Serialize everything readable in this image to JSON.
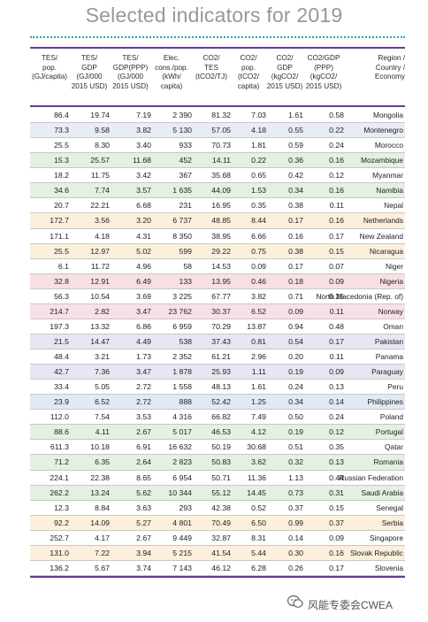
{
  "title": "Selected indicators for 2019",
  "headers": [
    {
      "lines": [
        "TES/",
        "pop.",
        "(GJ/capita)"
      ]
    },
    {
      "lines": [
        "TES/",
        "GDP",
        "(GJ/000",
        "2015 USD)"
      ]
    },
    {
      "lines": [
        "TES/",
        "GDP(PPP)",
        "(GJ/000",
        "2015 USD)"
      ]
    },
    {
      "lines": [
        "Elec.",
        "cons./pop.",
        "(kWh/",
        "capita)"
      ]
    },
    {
      "lines": [
        "CO2/",
        "TES",
        "(tCO2/TJ)"
      ]
    },
    {
      "lines": [
        "CO2/",
        "pop.",
        "(tCO2/",
        "capita)"
      ]
    },
    {
      "lines": [
        "CO2/",
        "GDP",
        "(kgCO2/",
        "2015 USD)"
      ]
    },
    {
      "lines": [
        "CO2/GDP",
        "(PPP)",
        "(kgCO2/",
        "2015 USD)"
      ]
    },
    {
      "lines": [
        "Region /",
        "Country /",
        "Economy"
      ]
    }
  ],
  "rows": [
    {
      "v": [
        "86.4",
        "19.74",
        "7.19",
        "2 390",
        "81.32",
        "7.03",
        "1.61",
        "0.58"
      ],
      "name": "Mongolia",
      "color": "#ffffff"
    },
    {
      "v": [
        "73.3",
        "9.58",
        "3.82",
        "5 130",
        "57.05",
        "4.18",
        "0.55",
        "0.22"
      ],
      "name": "Montenegro",
      "color": "#e7ecf5"
    },
    {
      "v": [
        "25.5",
        "8.30",
        "3.40",
        "933",
        "70.73",
        "1.81",
        "0.59",
        "0.24"
      ],
      "name": "Morocco",
      "color": "#ffffff"
    },
    {
      "v": [
        "15.3",
        "25.57",
        "11.68",
        "452",
        "14.11",
        "0.22",
        "0.36",
        "0.16"
      ],
      "name": "Mozambique",
      "color": "#e4f0e2"
    },
    {
      "v": [
        "18.2",
        "11.75",
        "3.42",
        "367",
        "35.68",
        "0.65",
        "0.42",
        "0.12"
      ],
      "name": "Myanmar",
      "color": "#ffffff"
    },
    {
      "v": [
        "34.6",
        "7.74",
        "3.57",
        "1 635",
        "44.09",
        "1.53",
        "0.34",
        "0.16"
      ],
      "name": "Namibia",
      "color": "#e4f0e2"
    },
    {
      "v": [
        "20.7",
        "22.21",
        "6.68",
        "231",
        "16.95",
        "0.35",
        "0.38",
        "0.11"
      ],
      "name": "Nepal",
      "color": "#ffffff"
    },
    {
      "v": [
        "172.7",
        "3.56",
        "3.20",
        "6 737",
        "48.85",
        "8.44",
        "0.17",
        "0.16"
      ],
      "name": "Netherlands",
      "color": "#fcf0dc"
    },
    {
      "v": [
        "171.1",
        "4.18",
        "4.31",
        "8 350",
        "38.95",
        "6.66",
        "0.16",
        "0.17"
      ],
      "name": "New Zealand",
      "color": "#ffffff"
    },
    {
      "v": [
        "25.5",
        "12.97",
        "5.02",
        "599",
        "29.22",
        "0.75",
        "0.38",
        "0.15"
      ],
      "name": "Nicaragua",
      "color": "#fcf0dc"
    },
    {
      "v": [
        "6.1",
        "11.72",
        "4.96",
        "58",
        "14.53",
        "0.09",
        "0.17",
        "0.07"
      ],
      "name": "Niger",
      "color": "#ffffff"
    },
    {
      "v": [
        "32.8",
        "12.91",
        "6.49",
        "133",
        "13.95",
        "0.46",
        "0.18",
        "0.09"
      ],
      "name": "Nigeria",
      "color": "#f8e0e2"
    },
    {
      "v": [
        "56.3",
        "10.54",
        "3.69",
        "3 225",
        "67.77",
        "3.82",
        "0.71",
        "0.25"
      ],
      "name": "North Macedonia (Rep. of)",
      "color": "#ffffff"
    },
    {
      "v": [
        "214.7",
        "2.82",
        "3.47",
        "23 762",
        "30.37",
        "6.52",
        "0.09",
        "0.11"
      ],
      "name": "Norway",
      "color": "#f8e0e8"
    },
    {
      "v": [
        "197.3",
        "13.32",
        "6.86",
        "6 959",
        "70.29",
        "13.87",
        "0.94",
        "0.48"
      ],
      "name": "Oman",
      "color": "#ffffff"
    },
    {
      "v": [
        "21.5",
        "14.47",
        "4.49",
        "538",
        "37.43",
        "0.81",
        "0.54",
        "0.17"
      ],
      "name": "Pakistan",
      "color": "#e9e5f2"
    },
    {
      "v": [
        "48.4",
        "3.21",
        "1.73",
        "2 352",
        "61.21",
        "2.96",
        "0.20",
        "0.11"
      ],
      "name": "Panama",
      "color": "#ffffff"
    },
    {
      "v": [
        "42.7",
        "7.36",
        "3.47",
        "1 878",
        "25.93",
        "1.11",
        "0.19",
        "0.09"
      ],
      "name": "Paraguay",
      "color": "#e9e5f2"
    },
    {
      "v": [
        "33.4",
        "5.05",
        "2.72",
        "1 558",
        "48.13",
        "1.61",
        "0.24",
        "0.13"
      ],
      "name": "Peru",
      "color": "#ffffff"
    },
    {
      "v": [
        "23.9",
        "6.52",
        "2.72",
        "888",
        "52.42",
        "1.25",
        "0.34",
        "0.14"
      ],
      "name": "Philippines",
      "color": "#e0e9f6"
    },
    {
      "v": [
        "112.0",
        "7.54",
        "3.53",
        "4 316",
        "66.82",
        "7.49",
        "0.50",
        "0.24"
      ],
      "name": "Poland",
      "color": "#ffffff"
    },
    {
      "v": [
        "88.6",
        "4.11",
        "2.67",
        "5 017",
        "46.53",
        "4.12",
        "0.19",
        "0.12"
      ],
      "name": "Portugal",
      "color": "#e6efe4"
    },
    {
      "v": [
        "611.3",
        "10.18",
        "6.91",
        "16 632",
        "50.19",
        "30.68",
        "0.51",
        "0.35"
      ],
      "name": "Qatar",
      "color": "#ffffff"
    },
    {
      "v": [
        "71.2",
        "6.35",
        "2.64",
        "2 823",
        "50.83",
        "3.62",
        "0.32",
        "0.13"
      ],
      "name": "Romania",
      "color": "#e4f0e2"
    },
    {
      "v": [
        "224.1",
        "22.38",
        "8.65",
        "6 954",
        "50.71",
        "11.36",
        "1.13",
        "0.44"
      ],
      "name": "Russian Federation",
      "color": "#ffffff"
    },
    {
      "v": [
        "262.2",
        "13.24",
        "5.62",
        "10 344",
        "55.12",
        "14.45",
        "0.73",
        "0.31"
      ],
      "name": "Saudi Arabia",
      "color": "#e4f0e2"
    },
    {
      "v": [
        "12.3",
        "8.84",
        "3.63",
        "293",
        "42.38",
        "0.52",
        "0.37",
        "0.15"
      ],
      "name": "Senegal",
      "color": "#ffffff"
    },
    {
      "v": [
        "92.2",
        "14.09",
        "5.27",
        "4 801",
        "70.49",
        "6.50",
        "0.99",
        "0.37"
      ],
      "name": "Serbia",
      "color": "#fcf0dc"
    },
    {
      "v": [
        "252.7",
        "4.17",
        "2.67",
        "9 449",
        "32.87",
        "8.31",
        "0.14",
        "0.09"
      ],
      "name": "Singapore",
      "color": "#ffffff"
    },
    {
      "v": [
        "131.0",
        "7.22",
        "3.94",
        "5 215",
        "41.54",
        "5.44",
        "0.30",
        "0.16"
      ],
      "name": "Slovak Republic",
      "color": "#fcf0dc"
    },
    {
      "v": [
        "136.2",
        "5.67",
        "3.74",
        "7 143",
        "46.12",
        "6.28",
        "0.26",
        "0.17"
      ],
      "name": "Slovenia",
      "color": "#ffffff"
    }
  ],
  "watermark": "风能专委会CWEA"
}
